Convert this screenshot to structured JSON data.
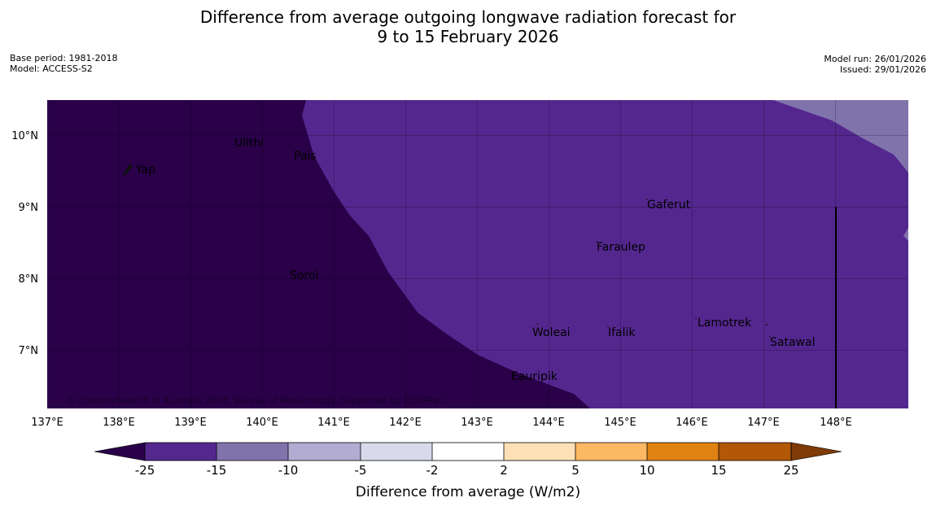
{
  "header": {
    "title_line1": "Difference from average outgoing longwave radiation forecast for",
    "title_line2": "9 to 15 February 2026",
    "base_period": "Base period: 1981-2018",
    "model": "Model: ACCESS-S2",
    "model_run": "Model run: 26/01/2026",
    "issued": "Issued: 29/01/2026"
  },
  "map": {
    "lon_ticks": [
      "137°E",
      "138°E",
      "139°E",
      "140°E",
      "141°E",
      "142°E",
      "143°E",
      "144°E",
      "145°E",
      "146°E",
      "147°E",
      "148°E"
    ],
    "lat_ticks": [
      "10°N",
      "9°N",
      "8°N",
      "7°N"
    ],
    "places": [
      "Ulithi",
      "Yap",
      "Pais",
      "Gaferut",
      "Faraulep",
      "Sorol",
      "Lamotrek",
      "Woleai",
      "Ifalik",
      "Satawal",
      "Eauripik"
    ],
    "copyright": "© Commonwealth of Australia 2026, Bureau of Meteorology. Supported by COSPPac",
    "colors": {
      "very_low": "#2a0049",
      "low": "#54278f",
      "moderate_low": "#8073ac",
      "ocean_border": "#000000"
    }
  },
  "colorbar": {
    "title": "Difference from average (W/m2)",
    "labels": [
      "-25",
      "-15",
      "-10",
      "-5",
      "-2",
      "2",
      "5",
      "10",
      "15",
      "25"
    ],
    "colors": [
      "#2a0049",
      "#54278f",
      "#8073ac",
      "#b2abd2",
      "#d8daeb",
      "#ffffff",
      "#fee0b6",
      "#fdb863",
      "#e08214",
      "#b35806",
      "#7f3b08"
    ]
  }
}
